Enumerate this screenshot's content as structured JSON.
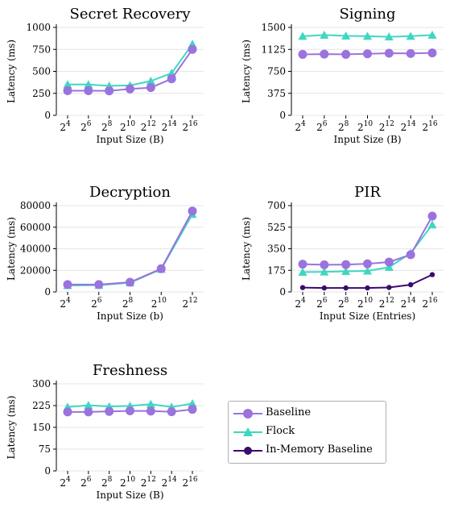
{
  "colors": {
    "baseline": "#9a73de",
    "flock": "#3fd7c1",
    "inmemory": "#3b0b6d",
    "grid": "#e6e6e6"
  },
  "legend": [
    {
      "key": "baseline",
      "label": "Baseline",
      "marker": "circle"
    },
    {
      "key": "flock",
      "label": "Flock",
      "marker": "triangle"
    },
    {
      "key": "inmemory",
      "label": "In-Memory Baseline",
      "marker": "circle"
    }
  ],
  "chart_data": [
    {
      "type": "line",
      "title": "Secret Recovery",
      "xlabel": "Input Size (B)",
      "ylabel": "Latency (ms)",
      "categories": [
        "2^4",
        "2^6",
        "2^8",
        "2^10",
        "2^12",
        "2^14",
        "2^16"
      ],
      "ylim": [
        0,
        1000
      ],
      "yticks": [
        0,
        250,
        500,
        750,
        1000
      ],
      "grid": true,
      "series": [
        {
          "name": "Baseline",
          "key": "baseline",
          "values": [
            280,
            280,
            278,
            300,
            315,
            415,
            750
          ]
        },
        {
          "name": "Flock",
          "key": "flock",
          "values": [
            350,
            350,
            335,
            340,
            390,
            480,
            810
          ]
        }
      ]
    },
    {
      "type": "line",
      "title": "Signing",
      "xlabel": "Input Size (B)",
      "ylabel": "Latency (ms)",
      "categories": [
        "2^4",
        "2^6",
        "2^8",
        "2^10",
        "2^12",
        "2^14",
        "2^16"
      ],
      "ylim": [
        0,
        1500
      ],
      "yticks": [
        0,
        375,
        750,
        1125,
        1500
      ],
      "grid": true,
      "series": [
        {
          "name": "Baseline",
          "key": "baseline",
          "values": [
            1040,
            1045,
            1040,
            1050,
            1060,
            1055,
            1065
          ]
        },
        {
          "name": "Flock",
          "key": "flock",
          "values": [
            1350,
            1370,
            1355,
            1350,
            1340,
            1350,
            1370
          ]
        }
      ]
    },
    {
      "type": "line",
      "title": "Decryption",
      "xlabel": "Input Size (b)",
      "ylabel": "Latency (ms)",
      "categories": [
        "2^4",
        "2^6",
        "2^8",
        "2^10",
        "2^12"
      ],
      "ylim": [
        0,
        80000
      ],
      "yticks": [
        0,
        20000,
        40000,
        60000,
        80000
      ],
      "grid": true,
      "series": [
        {
          "name": "Baseline",
          "key": "baseline",
          "values": [
            6800,
            6800,
            9000,
            21500,
            75000
          ]
        },
        {
          "name": "Flock",
          "key": "flock",
          "values": [
            6000,
            6200,
            8500,
            21000,
            72000
          ]
        }
      ]
    },
    {
      "type": "line",
      "title": "PIR",
      "xlabel": "Input Size (Entries)",
      "ylabel": "Latency (ms)",
      "categories": [
        "2^4",
        "2^6",
        "2^8",
        "2^10",
        "2^12",
        "2^14",
        "2^16"
      ],
      "ylim": [
        0,
        700
      ],
      "yticks": [
        0,
        175,
        350,
        525,
        700
      ],
      "grid": true,
      "series": [
        {
          "name": "Baseline",
          "key": "baseline",
          "values": [
            225,
            220,
            222,
            228,
            242,
            302,
            615
          ]
        },
        {
          "name": "Flock",
          "key": "flock",
          "values": [
            160,
            163,
            167,
            170,
            200,
            315,
            545
          ]
        },
        {
          "name": "In-Memory Baseline",
          "key": "inmemory",
          "values": [
            35,
            32,
            32,
            32,
            36,
            58,
            140
          ]
        }
      ]
    },
    {
      "type": "line",
      "title": "Freshness",
      "xlabel": "Input Size (B)",
      "ylabel": "Latency (ms)",
      "categories": [
        "2^4",
        "2^6",
        "2^8",
        "2^10",
        "2^12",
        "2^14",
        "2^16"
      ],
      "ylim": [
        0,
        300
      ],
      "yticks": [
        0,
        75,
        150,
        225,
        300
      ],
      "grid": true,
      "series": [
        {
          "name": "Baseline",
          "key": "baseline",
          "values": [
            203,
            203,
            205,
            207,
            206,
            204,
            212
          ]
        },
        {
          "name": "Flock",
          "key": "flock",
          "values": [
            220,
            226,
            222,
            224,
            230,
            220,
            232
          ]
        }
      ]
    }
  ]
}
